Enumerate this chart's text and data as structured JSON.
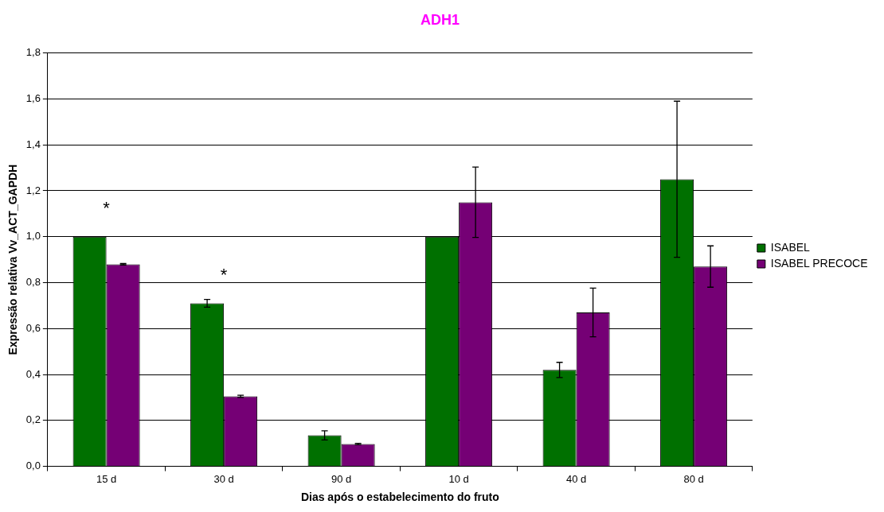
{
  "chart_data": {
    "type": "bar",
    "title": "ADH1",
    "xlabel": "Dias após o estabelecimento do fruto",
    "ylabel": "Expressão relativa Vv_ACT_GAPDH",
    "categories": [
      "15 d",
      "30 d",
      "90 d",
      "10 d",
      "40 d",
      "80 d"
    ],
    "series": [
      {
        "name": "ISABEL",
        "color": "#007000",
        "values": [
          1.0,
          0.71,
          0.135,
          1.0,
          0.42,
          1.25
        ],
        "errors": [
          null,
          0.017,
          0.02,
          null,
          0.033,
          0.34
        ]
      },
      {
        "name": "ISABEL PRECOCE",
        "color": "#750075",
        "values": [
          0.88,
          0.305,
          0.097,
          1.15,
          0.67,
          0.87
        ],
        "errors": [
          0.003,
          0.005,
          0.003,
          0.153,
          0.106,
          0.09
        ]
      }
    ],
    "ylim": [
      0,
      1.8
    ],
    "yticks": [
      {
        "value": 0,
        "label": "0,0"
      },
      {
        "value": 0.2,
        "label": "0,2"
      },
      {
        "value": 0.4,
        "label": "0,4"
      },
      {
        "value": 0.6,
        "label": "0,6"
      },
      {
        "value": 0.8,
        "label": "0,8"
      },
      {
        "value": 1.0,
        "label": "1,0"
      },
      {
        "value": 1.2,
        "label": "1,2"
      },
      {
        "value": 1.4,
        "label": "1,4"
      },
      {
        "value": 1.6,
        "label": "1,6"
      },
      {
        "value": 1.8,
        "label": "1,8"
      }
    ],
    "grid": "y",
    "legend": "right",
    "annotations": [
      "*",
      "*"
    ]
  }
}
